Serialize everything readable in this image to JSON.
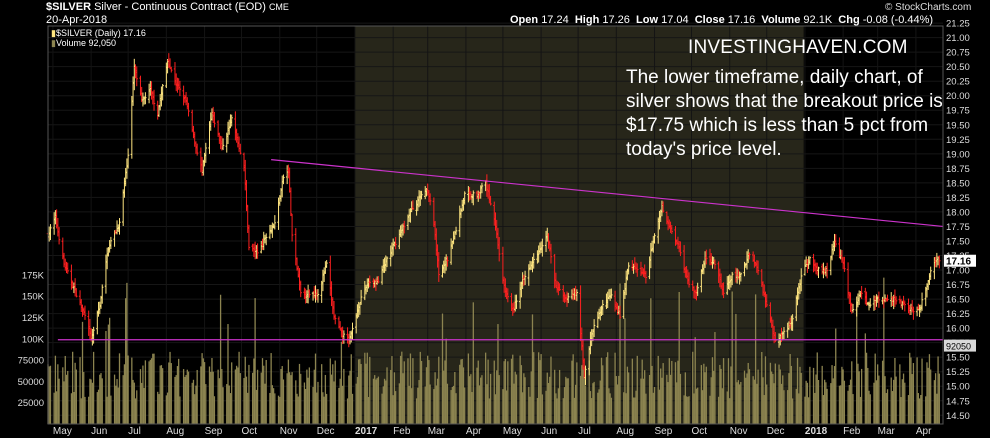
{
  "header": {
    "ticker": "$SILVER",
    "description": "Silver - Continuous Contract (EOD)",
    "exchange": "CME",
    "date": "20-Apr-2018",
    "copyright": "© StockCharts.com",
    "ohlc": {
      "open_label": "Open",
      "open": "17.24",
      "high_label": "High",
      "high": "17.26",
      "low_label": "Low",
      "low": "17.04",
      "close_label": "Close",
      "close": "17.16",
      "volume_label": "Volume",
      "volume": "92.1K",
      "chg_label": "Chg",
      "chg": "-0.08 (-0.44%)"
    },
    "legend_price": "$SILVER (Daily) 17.16",
    "legend_volume": "Volume 92,050"
  },
  "annotation": {
    "site": "INVESTINGHAVEN.COM",
    "text": "The lower timeframe, daily chart, of silver shows that the breakout price is $17.75 which is less than 5 pct from today's price level."
  },
  "colors": {
    "background": "#000000",
    "shaded_region": "#27261a",
    "up": "#ffe680",
    "down": "#ff2020",
    "volume": "#8c8450",
    "trendline": "#cc33cc",
    "last_price_badge": "#ffffff"
  },
  "chart_data": {
    "type": "ohlc",
    "price_axis": {
      "side": "right",
      "range": [
        14.35,
        21.2
      ],
      "ticks": [
        "21.25",
        "21.00",
        "20.75",
        "20.50",
        "20.25",
        "20.00",
        "19.75",
        "19.50",
        "19.25",
        "19.00",
        "18.75",
        "18.50",
        "18.25",
        "18.00",
        "17.75",
        "17.50",
        "17.25",
        "17.00",
        "16.75",
        "16.50",
        "16.25",
        "16.00",
        "15.75",
        "15.50",
        "15.25",
        "15.00",
        "14.75",
        "14.50"
      ]
    },
    "volume_axis": {
      "side": "left",
      "ticks": [
        "175K",
        "150K",
        "125K",
        "100K",
        "75000",
        "50000",
        "25000"
      ]
    },
    "x_ticks": [
      "May",
      "Jun",
      "Jul",
      "Aug",
      "Sep",
      "Oct",
      "Nov",
      "Dec",
      "2017",
      "Feb",
      "Mar",
      "Apr",
      "May",
      "Jun",
      "Jul",
      "Aug",
      "Sep",
      "Oct",
      "Nov",
      "Dec",
      "2018",
      "Feb",
      "Mar",
      "Apr"
    ],
    "shaded_period": [
      "2017-01-01",
      "2017-12-31"
    ],
    "last_price": "17.16",
    "last_volume": "92050",
    "price_path": [
      [
        "2016-04-27",
        17.6
      ],
      [
        "2016-05-03",
        17.9
      ],
      [
        "2016-05-10",
        17.1
      ],
      [
        "2016-05-18",
        16.7
      ],
      [
        "2016-05-27",
        16.2
      ],
      [
        "2016-06-01",
        15.8
      ],
      [
        "2016-06-08",
        16.4
      ],
      [
        "2016-06-15",
        17.4
      ],
      [
        "2016-06-24",
        17.8
      ],
      [
        "2016-07-01",
        19.0
      ],
      [
        "2016-07-06",
        20.5
      ],
      [
        "2016-07-12",
        19.9
      ],
      [
        "2016-07-19",
        20.1
      ],
      [
        "2016-07-25",
        19.7
      ],
      [
        "2016-08-02",
        20.6
      ],
      [
        "2016-08-09",
        20.2
      ],
      [
        "2016-08-17",
        19.9
      ],
      [
        "2016-08-23",
        19.3
      ],
      [
        "2016-08-30",
        18.7
      ],
      [
        "2016-09-07",
        19.7
      ],
      [
        "2016-09-15",
        19.1
      ],
      [
        "2016-09-23",
        19.6
      ],
      [
        "2016-10-03",
        18.8
      ],
      [
        "2016-10-07",
        17.4
      ],
      [
        "2016-10-14",
        17.3
      ],
      [
        "2016-10-21",
        17.6
      ],
      [
        "2016-10-28",
        17.8
      ],
      [
        "2016-11-04",
        18.6
      ],
      [
        "2016-11-08",
        18.7
      ],
      [
        "2016-11-11",
        17.6
      ],
      [
        "2016-11-18",
        16.6
      ],
      [
        "2016-11-25",
        16.6
      ],
      [
        "2016-12-02",
        16.6
      ],
      [
        "2016-12-09",
        17.1
      ],
      [
        "2016-12-15",
        16.2
      ],
      [
        "2016-12-21",
        15.9
      ],
      [
        "2016-12-28",
        15.8
      ],
      [
        "2017-01-04",
        16.4
      ],
      [
        "2017-01-12",
        16.8
      ],
      [
        "2017-01-20",
        16.8
      ],
      [
        "2017-01-27",
        17.2
      ],
      [
        "2017-02-06",
        17.6
      ],
      [
        "2017-02-15",
        18.0
      ],
      [
        "2017-02-24",
        18.3
      ],
      [
        "2017-03-01",
        18.4
      ],
      [
        "2017-03-06",
        17.8
      ],
      [
        "2017-03-10",
        16.9
      ],
      [
        "2017-03-17",
        17.2
      ],
      [
        "2017-03-24",
        17.7
      ],
      [
        "2017-03-31",
        18.3
      ],
      [
        "2017-04-10",
        18.3
      ],
      [
        "2017-04-17",
        18.5
      ],
      [
        "2017-04-24",
        17.9
      ],
      [
        "2017-05-02",
        16.7
      ],
      [
        "2017-05-09",
        16.3
      ],
      [
        "2017-05-17",
        16.8
      ],
      [
        "2017-05-26",
        17.2
      ],
      [
        "2017-06-06",
        17.6
      ],
      [
        "2017-06-13",
        16.7
      ],
      [
        "2017-06-22",
        16.5
      ],
      [
        "2017-06-30",
        16.6
      ],
      [
        "2017-07-06",
        15.2
      ],
      [
        "2017-07-12",
        15.9
      ],
      [
        "2017-07-21",
        16.4
      ],
      [
        "2017-07-28",
        16.6
      ],
      [
        "2017-08-04",
        16.2
      ],
      [
        "2017-08-11",
        17.1
      ],
      [
        "2017-08-18",
        17.0
      ],
      [
        "2017-08-25",
        16.9
      ],
      [
        "2017-09-01",
        17.6
      ],
      [
        "2017-09-07",
        18.1
      ],
      [
        "2017-09-14",
        17.7
      ],
      [
        "2017-09-21",
        17.4
      ],
      [
        "2017-09-28",
        16.8
      ],
      [
        "2017-10-05",
        16.6
      ],
      [
        "2017-10-12",
        17.2
      ],
      [
        "2017-10-20",
        17.1
      ],
      [
        "2017-10-27",
        16.6
      ],
      [
        "2017-11-03",
        16.9
      ],
      [
        "2017-11-10",
        16.9
      ],
      [
        "2017-11-17",
        17.3
      ],
      [
        "2017-11-24",
        17.0
      ],
      [
        "2017-12-01",
        16.4
      ],
      [
        "2017-12-08",
        15.8
      ],
      [
        "2017-12-14",
        15.9
      ],
      [
        "2017-12-21",
        16.1
      ],
      [
        "2017-12-29",
        16.9
      ],
      [
        "2018-01-05",
        17.2
      ],
      [
        "2018-01-12",
        17.0
      ],
      [
        "2018-01-19",
        17.0
      ],
      [
        "2018-01-25",
        17.5
      ],
      [
        "2018-02-01",
        17.1
      ],
      [
        "2018-02-08",
        16.3
      ],
      [
        "2018-02-15",
        16.6
      ],
      [
        "2018-02-22",
        16.4
      ],
      [
        "2018-03-01",
        16.5
      ],
      [
        "2018-03-08",
        16.5
      ],
      [
        "2018-03-15",
        16.5
      ],
      [
        "2018-03-22",
        16.4
      ],
      [
        "2018-03-29",
        16.3
      ],
      [
        "2018-04-05",
        16.4
      ],
      [
        "2018-04-12",
        16.9
      ],
      [
        "2018-04-18",
        17.2
      ],
      [
        "2018-04-20",
        17.16
      ]
    ],
    "trendlines": [
      {
        "name": "descending resistance",
        "from": [
          "2016-10-25",
          18.9
        ],
        "to": [
          "2018-04-23",
          17.75
        ]
      },
      {
        "name": "horizontal support",
        "from": [
          "2016-05-05",
          15.8
        ],
        "to": [
          "2018-04-23",
          15.8
        ]
      }
    ]
  }
}
